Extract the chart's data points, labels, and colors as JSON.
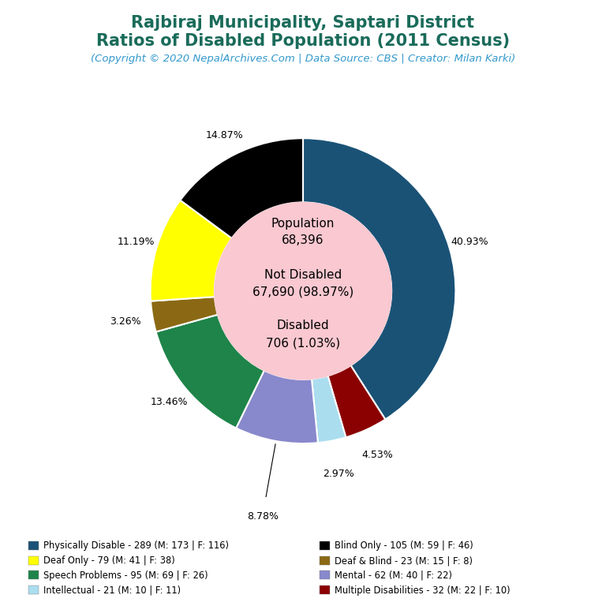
{
  "title_line1": "Rajbiraj Municipality, Saptari District",
  "title_line2": "Ratios of Disabled Population (2011 Census)",
  "subtitle": "(Copyright © 2020 NepalArchives.Com | Data Source: CBS | Creator: Milan Karki)",
  "title_color": "#1a6b5a",
  "subtitle_color": "#3399cc",
  "center_bg": "#f9c8d0",
  "background_color": "#ffffff",
  "ordered_values": [
    289,
    32,
    21,
    62,
    95,
    23,
    79,
    105
  ],
  "ordered_colors": [
    "#1a5276",
    "#8b0000",
    "#aaddee",
    "#8888cc",
    "#1e8449",
    "#8b6914",
    "#ffff00",
    "#000000"
  ],
  "ordered_pcts": [
    "40.93%",
    "4.53%",
    "2.97%",
    "8.78%",
    "13.46%",
    "3.26%",
    "11.19%",
    "14.87%"
  ],
  "legend_left": [
    [
      "Physically Disable - 289 (M: 173 | F: 116)",
      "#1a5276"
    ],
    [
      "Deaf Only - 79 (M: 41 | F: 38)",
      "#ffff00"
    ],
    [
      "Speech Problems - 95 (M: 69 | F: 26)",
      "#1e8449"
    ],
    [
      "Intellectual - 21 (M: 10 | F: 11)",
      "#aaddee"
    ]
  ],
  "legend_right": [
    [
      "Blind Only - 105 (M: 59 | F: 46)",
      "#000000"
    ],
    [
      "Deaf & Blind - 23 (M: 15 | F: 8)",
      "#8b6914"
    ],
    [
      "Mental - 62 (M: 40 | F: 22)",
      "#8888cc"
    ],
    [
      "Multiple Disabilities - 32 (M: 22 | F: 10)",
      "#8b0000"
    ]
  ]
}
